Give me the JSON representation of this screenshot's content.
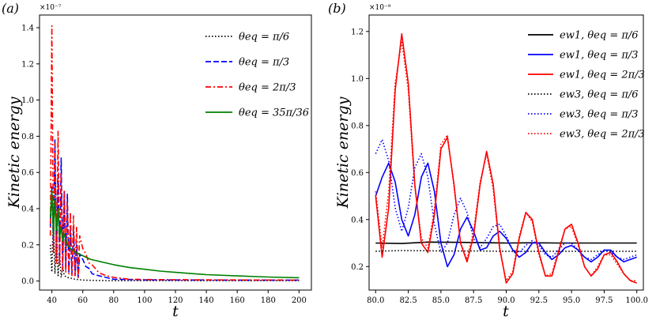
{
  "chart_data": [
    {
      "type": "line",
      "panel_label": "(a)",
      "xlabel": "t",
      "ylabel": "Kinetic energy",
      "xlim": [
        32,
        208
      ],
      "ylim": [
        -0.05,
        1.47
      ],
      "y_multiplier": "×10⁻⁷",
      "xticks": [
        "40",
        "60",
        "80",
        "100",
        "120",
        "140",
        "160",
        "180",
        "200"
      ],
      "yticks": [
        "0.0",
        "0.2",
        "0.4",
        "0.6",
        "0.8",
        "1.0",
        "1.2",
        "1.4"
      ],
      "legend_position": "top-right",
      "series": [
        {
          "name": "θeq = π/6",
          "color": "#000000",
          "dash": "dotted",
          "x": [
            39,
            40,
            41,
            42,
            43,
            44,
            45,
            46,
            47,
            48,
            50,
            55,
            60,
            70,
            80,
            100,
            150,
            200
          ],
          "y": [
            0.2,
            0.05,
            0.38,
            0.04,
            0.28,
            0.03,
            0.15,
            0.02,
            0.08,
            0.03,
            0.02,
            0.01,
            0.005,
            0.003,
            0.002,
            0.002,
            0.002,
            0.002
          ]
        },
        {
          "name": "θeq = π/3",
          "color": "#0000ff",
          "dash": "dashed",
          "x": [
            39,
            40,
            41,
            42,
            43,
            44,
            45,
            46,
            47,
            48,
            49,
            50,
            51,
            52,
            53,
            54,
            55,
            56,
            57,
            58,
            60,
            62,
            64,
            66,
            70,
            75,
            80,
            90,
            100,
            150,
            200
          ],
          "y": [
            0.3,
            0.52,
            0.2,
            0.78,
            0.12,
            0.58,
            0.1,
            0.68,
            0.08,
            0.5,
            0.06,
            0.48,
            0.05,
            0.3,
            0.04,
            0.28,
            0.03,
            0.2,
            0.02,
            0.15,
            0.12,
            0.08,
            0.07,
            0.04,
            0.03,
            0.02,
            0.01,
            0.008,
            0.006,
            0.005,
            0.005
          ]
        },
        {
          "name": "θeq = 2π/3",
          "color": "#ff0000",
          "dash": "dashdot",
          "x": [
            39,
            40,
            41,
            42,
            43,
            44,
            45,
            46,
            47,
            48,
            49,
            50,
            51,
            52,
            53,
            54,
            55,
            56,
            57,
            58,
            60,
            62,
            64,
            66,
            68,
            70,
            72,
            75,
            80,
            90,
            100,
            150,
            200
          ],
          "y": [
            0.25,
            1.41,
            0.15,
            0.76,
            0.1,
            0.83,
            0.08,
            0.6,
            0.06,
            0.5,
            0.05,
            0.44,
            0.04,
            0.38,
            0.03,
            0.36,
            0.03,
            0.3,
            0.02,
            0.25,
            0.18,
            0.15,
            0.1,
            0.09,
            0.07,
            0.05,
            0.04,
            0.03,
            0.02,
            0.01,
            0.008,
            0.006,
            0.005
          ]
        },
        {
          "name": "θeq = 35π/36",
          "color": "#008000",
          "dash": "solid",
          "x": [
            39,
            40,
            41,
            42,
            43,
            44,
            45,
            46,
            47,
            48,
            50,
            52,
            55,
            60,
            65,
            70,
            80,
            90,
            100,
            110,
            120,
            140,
            160,
            180,
            200
          ],
          "y": [
            0.35,
            0.5,
            0.25,
            0.45,
            0.28,
            0.4,
            0.24,
            0.3,
            0.22,
            0.26,
            0.2,
            0.18,
            0.16,
            0.14,
            0.12,
            0.11,
            0.09,
            0.075,
            0.065,
            0.055,
            0.048,
            0.035,
            0.028,
            0.022,
            0.018
          ]
        }
      ]
    },
    {
      "type": "line",
      "panel_label": "(b)",
      "xlabel": "t",
      "ylabel": "Kinetic energy",
      "xlim": [
        79.5,
        100.5
      ],
      "ylim": [
        0.1,
        1.27
      ],
      "y_multiplier": "×10⁻⁹",
      "xticks": [
        "80.0",
        "82.5",
        "85.0",
        "87.5",
        "90.0",
        "92.5",
        "95.0",
        "97.5",
        "100.0"
      ],
      "yticks": [
        "0.2",
        "0.4",
        "0.6",
        "0.8",
        "1.0",
        "1.2"
      ],
      "legend_position": "top-right",
      "series": [
        {
          "name": "ew1, θeq = π/6",
          "color": "#000000",
          "dash": "solid",
          "x": [
            80,
            82,
            84,
            86,
            88,
            90,
            92,
            94,
            96,
            98,
            100
          ],
          "y": [
            0.3,
            0.298,
            0.304,
            0.303,
            0.302,
            0.3,
            0.301,
            0.3,
            0.3,
            0.3,
            0.3
          ]
        },
        {
          "name": "ew1, θeq = π/3",
          "color": "#0000ff",
          "dash": "solid",
          "x": [
            80,
            80.5,
            81,
            81.5,
            82,
            82.5,
            83,
            83.5,
            84,
            84.5,
            85,
            85.5,
            86,
            86.5,
            87,
            87.5,
            88,
            88.5,
            89,
            89.5,
            90,
            90.5,
            91,
            91.5,
            92,
            92.5,
            93,
            93.5,
            94,
            94.5,
            95,
            95.5,
            96,
            96.5,
            97,
            97.5,
            98,
            98.5,
            99,
            99.5,
            100
          ],
          "y": [
            0.5,
            0.58,
            0.64,
            0.56,
            0.4,
            0.33,
            0.42,
            0.58,
            0.64,
            0.52,
            0.3,
            0.2,
            0.25,
            0.36,
            0.41,
            0.35,
            0.27,
            0.28,
            0.33,
            0.35,
            0.32,
            0.27,
            0.24,
            0.26,
            0.3,
            0.3,
            0.26,
            0.23,
            0.25,
            0.28,
            0.29,
            0.27,
            0.24,
            0.22,
            0.24,
            0.27,
            0.27,
            0.24,
            0.22,
            0.23,
            0.24
          ]
        },
        {
          "name": "ew1, θeq = 2π/3",
          "color": "#ff0000",
          "dash": "solid",
          "x": [
            80,
            80.5,
            81,
            81.5,
            82,
            82.5,
            83,
            83.5,
            84,
            84.5,
            85,
            85.5,
            86,
            86.5,
            87,
            87.5,
            88,
            88.5,
            89,
            89.5,
            90,
            90.5,
            91,
            91.5,
            92,
            92.5,
            93,
            93.5,
            94,
            94.5,
            95,
            95.5,
            96,
            96.5,
            97,
            97.5,
            98,
            98.5,
            99,
            99.5,
            100
          ],
          "y": [
            0.5,
            0.24,
            0.45,
            0.95,
            1.19,
            0.98,
            0.55,
            0.3,
            0.26,
            0.42,
            0.7,
            0.75,
            0.55,
            0.3,
            0.22,
            0.33,
            0.55,
            0.69,
            0.55,
            0.28,
            0.13,
            0.17,
            0.32,
            0.43,
            0.4,
            0.26,
            0.16,
            0.16,
            0.26,
            0.36,
            0.38,
            0.3,
            0.2,
            0.16,
            0.19,
            0.25,
            0.26,
            0.22,
            0.17,
            0.14,
            0.13
          ]
        },
        {
          "name": "ew3, θeq = π/6",
          "color": "#000000",
          "dash": "dotted",
          "x": [
            80,
            82,
            84,
            86,
            88,
            90,
            92,
            94,
            96,
            98,
            100
          ],
          "y": [
            0.265,
            0.268,
            0.267,
            0.266,
            0.266,
            0.265,
            0.265,
            0.265,
            0.265,
            0.265,
            0.265
          ]
        },
        {
          "name": "ew3, θeq = π/3",
          "color": "#0000ff",
          "dash": "dotted",
          "x": [
            80,
            80.5,
            81,
            81.5,
            82,
            82.5,
            83,
            83.5,
            84,
            84.5,
            85,
            85.5,
            86,
            86.5,
            87,
            87.5,
            88,
            88.5,
            89,
            89.5,
            90,
            90.5,
            91,
            91.5,
            92,
            92.5,
            93,
            93.5,
            94,
            94.5,
            95,
            95.5,
            96,
            96.5,
            97,
            97.5,
            98,
            98.5,
            99,
            99.5,
            100
          ],
          "y": [
            0.68,
            0.74,
            0.65,
            0.45,
            0.35,
            0.45,
            0.62,
            0.68,
            0.58,
            0.38,
            0.26,
            0.3,
            0.42,
            0.49,
            0.43,
            0.32,
            0.28,
            0.32,
            0.37,
            0.38,
            0.33,
            0.27,
            0.26,
            0.29,
            0.31,
            0.29,
            0.25,
            0.24,
            0.27,
            0.3,
            0.3,
            0.27,
            0.24,
            0.23,
            0.25,
            0.27,
            0.26,
            0.24,
            0.23,
            0.24,
            0.25
          ]
        },
        {
          "name": "ew3, θeq = 2π/3",
          "color": "#ff0000",
          "dash": "dotted",
          "x": [
            80,
            80.5,
            81,
            81.5,
            82,
            82.5,
            83,
            83.5,
            84,
            84.5,
            85,
            85.5,
            86,
            86.5,
            87,
            87.5,
            88,
            88.5,
            89,
            89.5,
            90,
            90.5,
            91,
            91.5,
            92,
            92.5,
            93,
            93.5,
            94,
            94.5,
            95,
            95.5,
            96,
            96.5,
            97,
            97.5,
            98,
            98.5,
            99,
            99.5,
            100
          ],
          "y": [
            0.52,
            0.28,
            0.52,
            0.98,
            1.16,
            0.95,
            0.54,
            0.32,
            0.28,
            0.44,
            0.72,
            0.76,
            0.54,
            0.3,
            0.23,
            0.35,
            0.56,
            0.68,
            0.53,
            0.27,
            0.14,
            0.18,
            0.33,
            0.43,
            0.39,
            0.25,
            0.16,
            0.17,
            0.27,
            0.36,
            0.37,
            0.29,
            0.2,
            0.16,
            0.2,
            0.25,
            0.25,
            0.21,
            0.17,
            0.14,
            0.14
          ]
        }
      ]
    }
  ]
}
